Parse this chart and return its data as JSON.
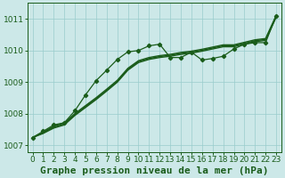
{
  "background_color": "#cce8e8",
  "plot_bg_color": "#cce8e8",
  "grid_color": "#99cccc",
  "line_color": "#1a5c1a",
  "xlim": [
    -0.5,
    23.5
  ],
  "ylim": [
    1006.8,
    1011.5
  ],
  "yticks": [
    1007,
    1008,
    1009,
    1010,
    1011
  ],
  "xticks": [
    0,
    1,
    2,
    3,
    4,
    5,
    6,
    7,
    8,
    9,
    10,
    11,
    12,
    13,
    14,
    15,
    16,
    17,
    18,
    19,
    20,
    21,
    22,
    23
  ],
  "series_marked_x": [
    0,
    1,
    2,
    3,
    4,
    5,
    6,
    7,
    8,
    9,
    10,
    11,
    12,
    13,
    14,
    15,
    16,
    17,
    18,
    19,
    20,
    21,
    22,
    23
  ],
  "series_marked_y": [
    1007.25,
    1007.45,
    1007.65,
    1007.72,
    1008.1,
    1008.6,
    1009.05,
    1009.38,
    1009.72,
    1009.96,
    1010.0,
    1010.15,
    1010.2,
    1009.78,
    1009.78,
    1009.95,
    1009.7,
    1009.75,
    1009.82,
    1010.05,
    1010.2,
    1010.25,
    1010.25,
    1011.1
  ],
  "series_smooth1_x": [
    0,
    1,
    2,
    3,
    4,
    5,
    6,
    7,
    8,
    9,
    10,
    11,
    12,
    13,
    14,
    15,
    16,
    17,
    18,
    19,
    20,
    21,
    22,
    23
  ],
  "series_smooth1_y": [
    1007.25,
    1007.38,
    1007.55,
    1007.65,
    1007.95,
    1008.2,
    1008.45,
    1008.72,
    1009.0,
    1009.38,
    1009.62,
    1009.72,
    1009.78,
    1009.82,
    1009.88,
    1009.92,
    1009.98,
    1010.05,
    1010.12,
    1010.12,
    1010.2,
    1010.28,
    1010.32,
    1011.05
  ],
  "series_smooth2_x": [
    0,
    1,
    2,
    3,
    4,
    5,
    6,
    7,
    8,
    9,
    10,
    11,
    12,
    13,
    14,
    15,
    16,
    17,
    18,
    19,
    20,
    21,
    22,
    23
  ],
  "series_smooth2_y": [
    1007.25,
    1007.4,
    1007.58,
    1007.68,
    1007.98,
    1008.23,
    1008.48,
    1008.75,
    1009.03,
    1009.41,
    1009.65,
    1009.75,
    1009.81,
    1009.85,
    1009.91,
    1009.95,
    1010.01,
    1010.08,
    1010.15,
    1010.15,
    1010.23,
    1010.31,
    1010.35,
    1011.08
  ],
  "series_smooth3_x": [
    0,
    1,
    2,
    3,
    4,
    5,
    6,
    7,
    8,
    9,
    10,
    11,
    12,
    13,
    14,
    15,
    16,
    17,
    18,
    19,
    20,
    21,
    22,
    23
  ],
  "series_smooth3_y": [
    1007.25,
    1007.42,
    1007.61,
    1007.71,
    1008.01,
    1008.26,
    1008.51,
    1008.78,
    1009.06,
    1009.44,
    1009.68,
    1009.78,
    1009.84,
    1009.88,
    1009.94,
    1009.98,
    1010.04,
    1010.11,
    1010.18,
    1010.18,
    1010.26,
    1010.34,
    1010.38,
    1011.11
  ],
  "xlabel": "Graphe pression niveau de la mer (hPa)",
  "xlabel_fontsize": 8,
  "tick_fontsize": 6.5
}
